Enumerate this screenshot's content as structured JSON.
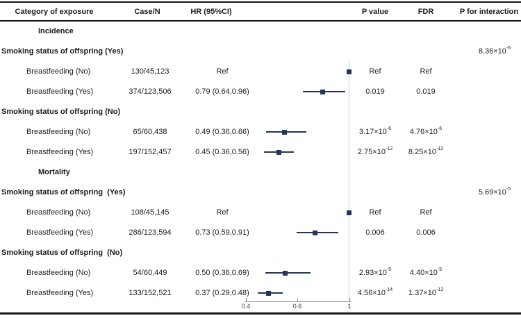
{
  "header": {
    "columns": [
      "Category of exposure",
      "Case/N",
      "HR (95%CI)",
      "P value",
      "FDR",
      "P for interaction"
    ]
  },
  "axis": {
    "ticks": [
      {
        "label": "0.4",
        "x": 2
      },
      {
        "label": "0.6",
        "x": 76
      },
      {
        "label": "1",
        "x": 151
      }
    ]
  },
  "colors": {
    "marker_navy": "#21365a",
    "ref_line_gray": "#c9ccd1",
    "text": "#1b1b1b"
  },
  "rows": [
    {
      "type": "section",
      "label": "Incidence"
    },
    {
      "type": "group",
      "label": "Smoking status of offspring (Yes)",
      "p_interaction": {
        "m": "8.36×10",
        "e": "-6"
      }
    },
    {
      "type": "item",
      "label": "Breastfeeding (No)",
      "case_n": "130/45,123",
      "hr": "Ref",
      "p": {
        "m": "Ref"
      },
      "fdr": {
        "m": "Ref"
      },
      "plot": {
        "marker": 150,
        "ref": true
      }
    },
    {
      "type": "item",
      "label": "Breastfeeding (Yes)",
      "case_n": "374/123,506",
      "hr": "0.79 (0.64,0.96)",
      "p": {
        "m": "0.019"
      },
      "fdr": {
        "m": "0.019"
      },
      "plot": {
        "marker": 112,
        "lo": 84,
        "hi": 145
      }
    },
    {
      "type": "group",
      "label": "Smoking status of offspring (No)"
    },
    {
      "type": "item",
      "label": "Breastfeeding (No)",
      "case_n": "65/60,438",
      "hr": "0.49 (0.36,0.66)",
      "p": {
        "m": "3.17×10",
        "e": "-6"
      },
      "fdr": {
        "m": "4.76×10",
        "e": "-6"
      },
      "plot": {
        "marker": 57,
        "lo": 31,
        "hi": 89
      }
    },
    {
      "type": "item",
      "label": "Breastfeeding (Yes)",
      "case_n": "197/152,457",
      "hr": "0.45 (0.36,0.56)",
      "p": {
        "m": "2.75×10",
        "e": "-12"
      },
      "fdr": {
        "m": "8.25×10",
        "e": "-12"
      },
      "plot": {
        "marker": 49,
        "lo": 28,
        "hi": 71
      }
    },
    {
      "type": "section",
      "label": "Mortality"
    },
    {
      "type": "group",
      "label": "Smoking status of offspring  (Yes)",
      "p_interaction": {
        "m": "5.69×10",
        "e": "-5"
      }
    },
    {
      "type": "item",
      "label": "Breastfeeding (No)",
      "case_n": "108/45,145",
      "hr": "Ref",
      "p": {
        "m": "Ref"
      },
      "fdr": {
        "m": "Ref"
      },
      "plot": {
        "marker": 150,
        "ref": true
      }
    },
    {
      "type": "item",
      "label": "Breastfeeding (Yes)",
      "case_n": "286/123,594",
      "hr": "0.73 (0.59,0.91)",
      "p": {
        "m": "0.006"
      },
      "fdr": {
        "m": "0.006"
      },
      "plot": {
        "marker": 101,
        "lo": 75,
        "hi": 135
      }
    },
    {
      "type": "group",
      "label": "Smoking status of offspring  (No)"
    },
    {
      "type": "item",
      "label": "Breastfeeding (No)",
      "case_n": "54/60,449",
      "hr": "0.50 (0.36,0.69)",
      "p": {
        "m": "2.93×10",
        "e": "-5"
      },
      "fdr": {
        "m": "4.40×10",
        "e": "-5"
      },
      "plot": {
        "marker": 58,
        "lo": 30,
        "hi": 95
      }
    },
    {
      "type": "item",
      "label": "Breastfeeding (Yes)",
      "case_n": "133/152,521",
      "hr": "0.37 (0.29,0.48)",
      "p": {
        "m": "4.56×10",
        "e": "-14"
      },
      "fdr": {
        "m": "1.37×10",
        "e": "-13"
      },
      "plot": {
        "marker": 34,
        "lo": 19,
        "hi": 55
      }
    }
  ],
  "chart_data": {
    "type": "scatter",
    "subtype": "forest-plot",
    "xlabel": "HR (95%CI)",
    "x_scale": "log-like",
    "x_ticks": [
      0.4,
      0.6,
      1
    ],
    "reference_line_x": 1,
    "legend_position": "none",
    "grid": false,
    "series": [
      {
        "section": "Incidence",
        "group": "Smoking status of offspring (Yes)",
        "label": "Breastfeeding (No)",
        "case_n": "130/45,123",
        "hr": 1,
        "ref": true,
        "p": "Ref",
        "fdr": "Ref",
        "p_interaction": "8.36e-6"
      },
      {
        "section": "Incidence",
        "group": "Smoking status of offspring (Yes)",
        "label": "Breastfeeding (Yes)",
        "case_n": "374/123,506",
        "hr": 0.79,
        "ci": [
          0.64,
          0.96
        ],
        "p": "0.019",
        "fdr": "0.019"
      },
      {
        "section": "Incidence",
        "group": "Smoking status of offspring (No)",
        "label": "Breastfeeding (No)",
        "case_n": "65/60,438",
        "hr": 0.49,
        "ci": [
          0.36,
          0.66
        ],
        "p": "3.17e-6",
        "fdr": "4.76e-6"
      },
      {
        "section": "Incidence",
        "group": "Smoking status of offspring (No)",
        "label": "Breastfeeding (Yes)",
        "case_n": "197/152,457",
        "hr": 0.45,
        "ci": [
          0.36,
          0.56
        ],
        "p": "2.75e-12",
        "fdr": "8.25e-12"
      },
      {
        "section": "Mortality",
        "group": "Smoking status of offspring (Yes)",
        "label": "Breastfeeding (No)",
        "case_n": "108/45,145",
        "hr": 1,
        "ref": true,
        "p": "Ref",
        "fdr": "Ref",
        "p_interaction": "5.69e-5"
      },
      {
        "section": "Mortality",
        "group": "Smoking status of offspring (Yes)",
        "label": "Breastfeeding (Yes)",
        "case_n": "286/123,594",
        "hr": 0.73,
        "ci": [
          0.59,
          0.91
        ],
        "p": "0.006",
        "fdr": "0.006"
      },
      {
        "section": "Mortality",
        "group": "Smoking status of offspring (No)",
        "label": "Breastfeeding (No)",
        "case_n": "54/60,449",
        "hr": 0.5,
        "ci": [
          0.36,
          0.69
        ],
        "p": "2.93e-5",
        "fdr": "4.40e-5"
      },
      {
        "section": "Mortality",
        "group": "Smoking status of offspring (No)",
        "label": "Breastfeeding (Yes)",
        "case_n": "133/152,521",
        "hr": 0.37,
        "ci": [
          0.29,
          0.48
        ],
        "p": "4.56e-14",
        "fdr": "1.37e-13"
      }
    ]
  }
}
